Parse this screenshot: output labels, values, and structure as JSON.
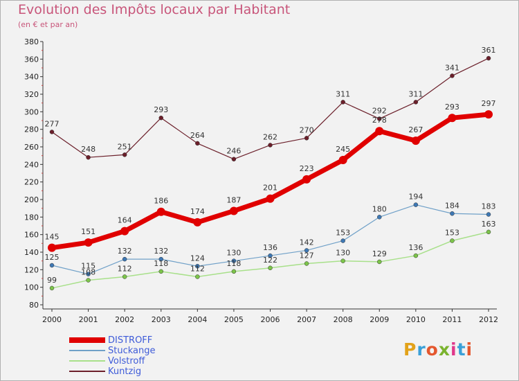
{
  "header": {
    "title": "Evolution des Impôts locaux par Habitant",
    "subtitle": "(en € et par an)"
  },
  "logo": {
    "text": "Proxiti",
    "colors": [
      "#e2a21a",
      "#3aa0d8",
      "#e4572e",
      "#7ab32e",
      "#e0388b",
      "#3aa0d8",
      "#e4572e"
    ]
  },
  "chart_data": {
    "type": "line",
    "title": "Evolution des Impôts locaux par Habitant",
    "subtitle": "(en € et par an)",
    "xlabel": "",
    "ylabel": "",
    "x": [
      "2000",
      "2001",
      "2002",
      "2003",
      "2004",
      "2005",
      "2006",
      "2007",
      "2008",
      "2009",
      "2010",
      "2011",
      "2012"
    ],
    "ylim": [
      80,
      380
    ],
    "yticks": [
      80,
      100,
      120,
      140,
      160,
      180,
      200,
      220,
      240,
      260,
      280,
      300,
      320,
      340,
      360,
      380
    ],
    "grid": false,
    "legend_position": "bottom-left",
    "series": [
      {
        "name": "Kuntzig",
        "color": "#6b1f2a",
        "marker": "#6b1f2a",
        "width": 1.2,
        "r": 3,
        "values": [
          277,
          248,
          251,
          293,
          264,
          246,
          262,
          270,
          311,
          292,
          311,
          341,
          361
        ]
      },
      {
        "name": "Stuckange",
        "color": "#6fa0c8",
        "marker": "#3e78b4",
        "width": 1.2,
        "r": 3,
        "values": [
          125,
          115,
          132,
          132,
          124,
          130,
          136,
          142,
          153,
          180,
          194,
          184,
          183
        ]
      },
      {
        "name": "Volstroff",
        "color": "#a8e08a",
        "marker": "#7cc44a",
        "width": 1.5,
        "r": 3,
        "values": [
          99,
          108,
          112,
          118,
          112,
          118,
          122,
          127,
          130,
          129,
          136,
          153,
          163
        ]
      },
      {
        "name": "DISTROFF",
        "color": "#e00000",
        "marker": "#e00000",
        "width": 7,
        "r": 6,
        "values": [
          145,
          151,
          164,
          186,
          174,
          187,
          201,
          223,
          245,
          278,
          267,
          293,
          297
        ]
      }
    ],
    "legend_order": [
      "DISTROFF",
      "Stuckange",
      "Volstroff",
      "Kuntzig"
    ]
  }
}
